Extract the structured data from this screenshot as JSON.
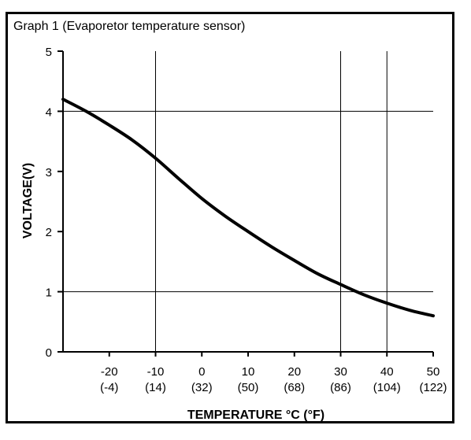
{
  "chart_data": {
    "type": "line",
    "title": "Graph 1 (Evaporetor temperature sensor)",
    "xlabel": "TEMPERATURE  °C (°F)",
    "ylabel": "VOLTAGE(V)",
    "xlim": [
      -30,
      50
    ],
    "ylim": [
      0,
      5
    ],
    "grid": true,
    "x_ticks": [
      {
        "value": -20,
        "label": "-20",
        "sublabel": "(-4)"
      },
      {
        "value": -10,
        "label": "-10",
        "sublabel": "(14)"
      },
      {
        "value": 0,
        "label": "0",
        "sublabel": "(32)"
      },
      {
        "value": 10,
        "label": "10",
        "sublabel": "(50)"
      },
      {
        "value": 20,
        "label": "20",
        "sublabel": "(68)"
      },
      {
        "value": 30,
        "label": "30",
        "sublabel": "(86)"
      },
      {
        "value": 40,
        "label": "40",
        "sublabel": "(104)"
      },
      {
        "value": 50,
        "label": "50",
        "sublabel": "(122)"
      }
    ],
    "y_ticks": [
      {
        "value": 0,
        "label": "0"
      },
      {
        "value": 1,
        "label": "1"
      },
      {
        "value": 2,
        "label": "2"
      },
      {
        "value": 3,
        "label": "3"
      },
      {
        "value": 4,
        "label": "4"
      },
      {
        "value": 5,
        "label": "5"
      }
    ],
    "vertical_gridlines": [
      -10,
      30,
      40
    ],
    "horizontal_gridlines": [
      1,
      4
    ],
    "series": [
      {
        "x": [
          -30,
          -25,
          -20,
          -15,
          -10,
          -5,
          0,
          5,
          10,
          15,
          20,
          25,
          30,
          35,
          40,
          45,
          50
        ],
        "y": [
          4.2,
          4.0,
          3.77,
          3.52,
          3.22,
          2.88,
          2.55,
          2.26,
          2.0,
          1.75,
          1.52,
          1.3,
          1.12,
          0.95,
          0.81,
          0.69,
          0.6
        ]
      }
    ],
    "colors": {
      "line": "#000000",
      "axis": "#000000",
      "grid": "#000000"
    }
  }
}
